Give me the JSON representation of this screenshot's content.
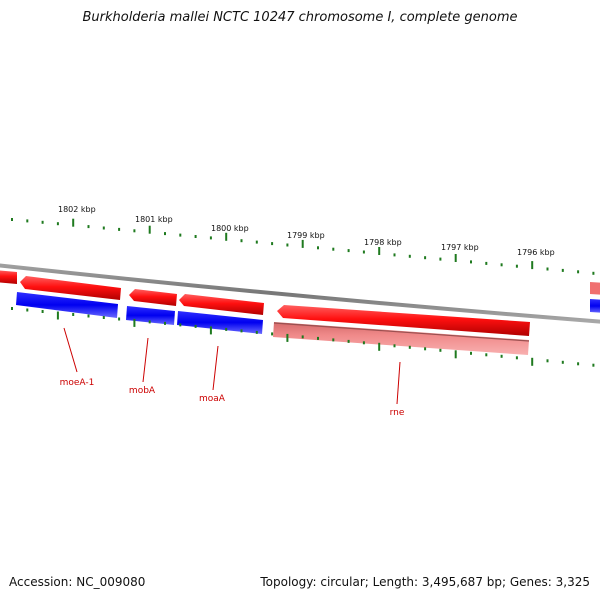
{
  "title": "Burkholderia mallei NCTC 10247 chromosome I, complete genome",
  "scale_labels": [
    "1802 kbp",
    "1801 kbp",
    "1800 kbp",
    "1799 kbp",
    "1798 kbp",
    "1797 kbp",
    "1796 kbp"
  ],
  "gene_labels": [
    "moeA-1",
    "mobA",
    "moaA",
    "rne"
  ],
  "footer": {
    "accession": "Accession: NC_009080",
    "summary": "Topology: circular; Length: 3,495,687 bp; Genes: 3,325"
  },
  "colors": {
    "forward_cds": "#ee0000",
    "reverse_cds": "#0000ee",
    "rna_feature": "#f08080",
    "backbone": "#808080",
    "tick": "#1f7a1f",
    "gene_label": "#cc0000"
  }
}
